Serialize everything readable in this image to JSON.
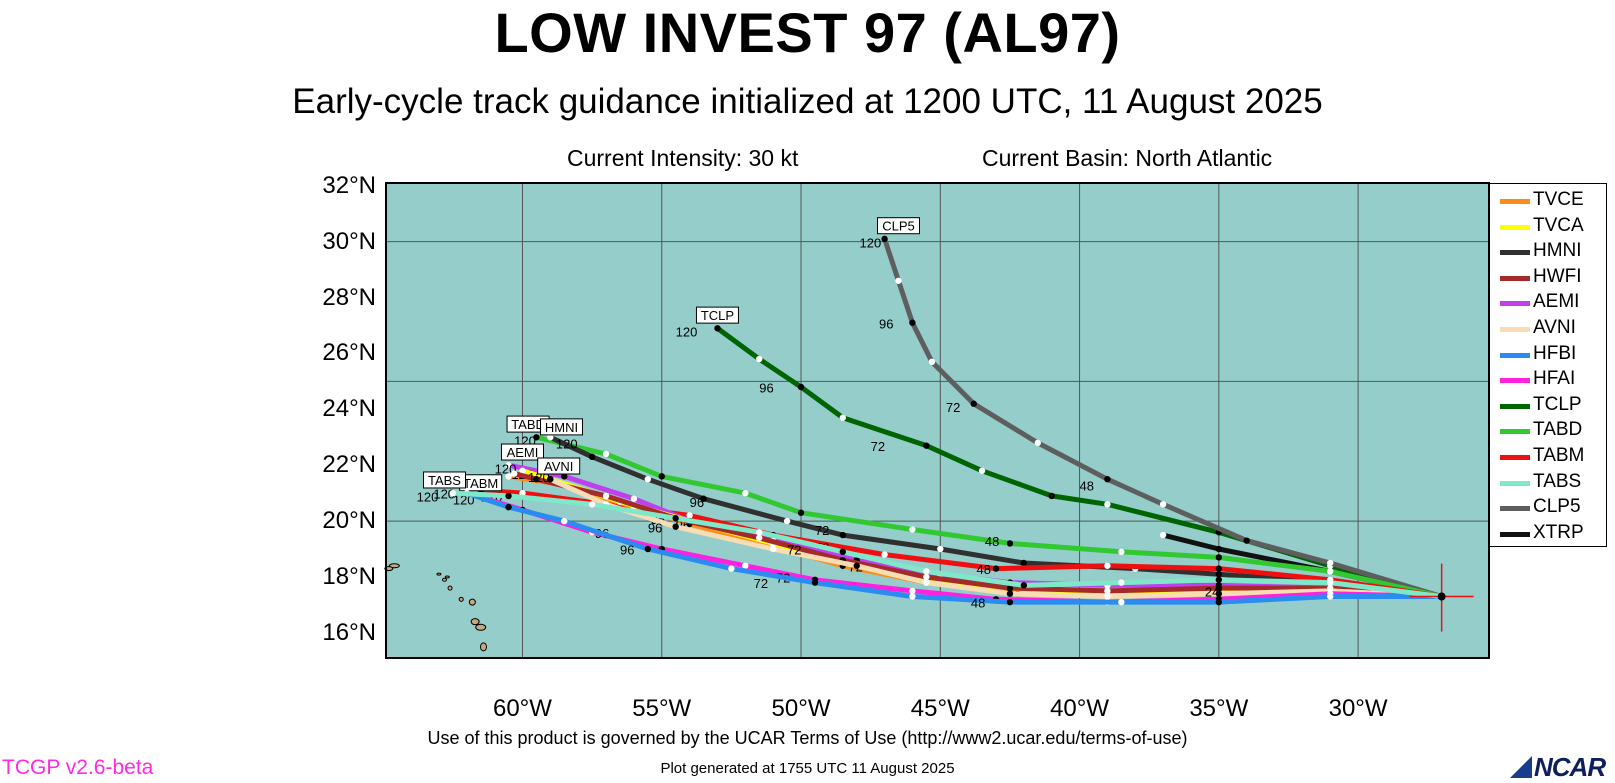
{
  "header": {
    "title": "LOW INVEST 97 (AL97)",
    "subtitle": "Early-cycle track guidance initialized at 1200 UTC, 11 August 2025",
    "intensity": "Current Intensity: 30 kt",
    "basin": "Current Basin: North Atlantic"
  },
  "axes": {
    "lat_labels": [
      "32°N",
      "30°N",
      "28°N",
      "26°N",
      "24°N",
      "22°N",
      "20°N",
      "18°N",
      "16°N"
    ],
    "lon_labels": [
      "60°W",
      "55°W",
      "50°W",
      "45°W",
      "40°W",
      "35°W",
      "30°W"
    ],
    "lat_range": [
      15.1,
      32.1
    ],
    "lon_range": [
      -64.9,
      -25.3
    ],
    "grid": true
  },
  "colors": {
    "ocean": "#95cdcb",
    "land": "#c8a880",
    "grid": "#555555",
    "version": "#ff2ae3"
  },
  "footer": {
    "terms": "Use of this product is governed by the UCAR Terms of Use (http://www2.ucar.edu/terms-of-use)",
    "generated": "Plot generated at 1755 UTC   11 August 2025",
    "version": "TCGP v2.6-beta",
    "logo_text": "NCAR"
  },
  "legend": [
    {
      "name": "TVCE",
      "color": "#ff8c1a"
    },
    {
      "name": "TVCA",
      "color": "#ffff00"
    },
    {
      "name": "HMNI",
      "color": "#303030"
    },
    {
      "name": "HWFI",
      "color": "#a52a2a"
    },
    {
      "name": "AEMI",
      "color": "#c040f0"
    },
    {
      "name": "AVNI",
      "color": "#f7dcb4"
    },
    {
      "name": "HFBI",
      "color": "#2a8cf0"
    },
    {
      "name": "HFAI",
      "color": "#ff20e0"
    },
    {
      "name": "TCLP",
      "color": "#006400"
    },
    {
      "name": "TABD",
      "color": "#32c832"
    },
    {
      "name": "TABM",
      "color": "#ee1010"
    },
    {
      "name": "TABS",
      "color": "#7fe8c8"
    },
    {
      "name": "CLP5",
      "color": "#5e5e5e"
    },
    {
      "name": "XTRP",
      "color": "#111111"
    }
  ],
  "chart_data": {
    "type": "line",
    "title": "LOW INVEST 97 (AL97)",
    "x_axis": "longitude (°E, negative = W)",
    "y_axis": "latitude (°N)",
    "initial_position": [
      -27.0,
      17.3
    ],
    "series": [
      {
        "name": "TCLP",
        "points": [
          [
            -27.0,
            17.3
          ],
          [
            -31.0,
            18.4
          ],
          [
            -35.0,
            19.6
          ],
          [
            -39.0,
            20.6
          ],
          [
            -41.0,
            20.9
          ],
          [
            -43.5,
            21.8
          ],
          [
            -45.5,
            22.7
          ],
          [
            -48.5,
            23.7
          ],
          [
            -50.0,
            24.8
          ],
          [
            -51.5,
            25.8
          ],
          [
            -53.0,
            26.9
          ]
        ],
        "labels": [
          {
            "text": "72",
            "at": [
              -47.5,
              22.5
            ]
          },
          {
            "text": "96",
            "at": [
              -51.5,
              24.6
            ]
          },
          {
            "text": "120",
            "at": [
              -54.5,
              26.6
            ]
          }
        ],
        "tag": "TCLP",
        "tag_at": [
          -53.0,
          27.3
        ]
      },
      {
        "name": "CLP5",
        "points": [
          [
            -27.0,
            17.3
          ],
          [
            -31.0,
            18.5
          ],
          [
            -34.0,
            19.3
          ],
          [
            -37.0,
            20.6
          ],
          [
            -39.0,
            21.5
          ],
          [
            -41.5,
            22.8
          ],
          [
            -43.8,
            24.2
          ],
          [
            -45.3,
            25.7
          ],
          [
            -46.0,
            27.1
          ],
          [
            -46.5,
            28.6
          ],
          [
            -47.0,
            30.1
          ]
        ],
        "labels": [
          {
            "text": "48",
            "at": [
              -40.0,
              21.1
            ]
          },
          {
            "text": "72",
            "at": [
              -44.8,
              23.9
            ]
          },
          {
            "text": "96",
            "at": [
              -47.2,
              26.9
            ]
          },
          {
            "text": "120",
            "at": [
              -47.9,
              29.8
            ]
          }
        ],
        "tag": "CLP5",
        "tag_at": [
          -46.5,
          30.5
        ]
      },
      {
        "name": "XTRP",
        "points": [
          [
            -27.0,
            17.3
          ],
          [
            -31.0,
            18.2
          ],
          [
            -35.0,
            19.0
          ],
          [
            -37.0,
            19.5
          ]
        ],
        "labels": [],
        "tag": "",
        "tag_at": null
      },
      {
        "name": "TABD",
        "points": [
          [
            -27.0,
            17.3
          ],
          [
            -31.0,
            18.2
          ],
          [
            -35.0,
            18.7
          ],
          [
            -38.5,
            18.9
          ],
          [
            -42.5,
            19.2
          ],
          [
            -46.0,
            19.7
          ],
          [
            -50.0,
            20.3
          ],
          [
            -52.0,
            21.0
          ],
          [
            -55.0,
            21.6
          ],
          [
            -57.0,
            22.4
          ],
          [
            -59.5,
            23.0
          ]
        ],
        "labels": [
          {
            "text": "48",
            "at": [
              -43.4,
              19.1
            ]
          },
          {
            "text": "120",
            "at": [
              -60.3,
              22.7
            ]
          }
        ],
        "tag": "TABD",
        "tag_at": [
          -59.8,
          23.4
        ]
      },
      {
        "name": "HMNI",
        "points": [
          [
            -27.0,
            17.3
          ],
          [
            -31.0,
            17.8
          ],
          [
            -35.0,
            18.1
          ],
          [
            -38.0,
            18.3
          ],
          [
            -42.0,
            18.5
          ],
          [
            -45.0,
            19.0
          ],
          [
            -48.5,
            19.5
          ],
          [
            -50.5,
            20.0
          ],
          [
            -53.5,
            20.8
          ],
          [
            -55.5,
            21.5
          ],
          [
            -57.5,
            22.3
          ],
          [
            -59.0,
            23.0
          ]
        ],
        "labels": [
          {
            "text": "72",
            "at": [
              -49.5,
              19.5
            ]
          },
          {
            "text": "96",
            "at": [
              -54.0,
              20.5
            ]
          },
          {
            "text": "120",
            "at": [
              -58.8,
              22.6
            ]
          }
        ],
        "tag": "HMNI",
        "tag_at": [
          -58.6,
          23.3
        ]
      },
      {
        "name": "TABM",
        "points": [
          [
            -27.0,
            17.3
          ],
          [
            -31.0,
            17.9
          ],
          [
            -35.0,
            18.3
          ],
          [
            -39.0,
            18.4
          ],
          [
            -43.0,
            18.3
          ],
          [
            -47.0,
            18.8
          ],
          [
            -51.0,
            19.5
          ],
          [
            -54.0,
            20.2
          ],
          [
            -57.0,
            20.6
          ],
          [
            -60.0,
            21.0
          ],
          [
            -61.5,
            21.1
          ]
        ],
        "labels": [
          {
            "text": "48",
            "at": [
              -43.7,
              18.1
            ]
          },
          {
            "text": "72",
            "at": [
              -49.5,
              18.9
            ]
          },
          {
            "text": "96",
            "at": [
              -55.4,
              19.9
            ]
          },
          {
            "text": "120",
            "at": [
              -61.5,
              20.7
            ]
          }
        ],
        "tag": "TABM",
        "tag_at": [
          -61.5,
          21.3
        ]
      },
      {
        "name": "AEMI",
        "points": [
          [
            -27.0,
            17.3
          ],
          [
            -31.0,
            17.6
          ],
          [
            -35.0,
            17.7
          ],
          [
            -39.0,
            17.7
          ],
          [
            -42.5,
            17.8
          ],
          [
            -45.0,
            18.1
          ],
          [
            -48.0,
            18.6
          ],
          [
            -51.0,
            19.3
          ],
          [
            -54.0,
            20.0
          ],
          [
            -56.0,
            20.8
          ],
          [
            -58.5,
            21.6
          ],
          [
            -60.5,
            22.0
          ]
        ],
        "labels": [
          {
            "text": "120",
            "at": [
              -61.0,
              21.7
            ]
          }
        ],
        "tag": "AEMI",
        "tag_at": [
          -60.0,
          22.4
        ]
      },
      {
        "name": "TVCE",
        "points": [
          [
            -27.0,
            17.3
          ],
          [
            -31.0,
            17.5
          ],
          [
            -35.0,
            17.4
          ],
          [
            -39.0,
            17.3
          ],
          [
            -42.5,
            17.5
          ],
          [
            -45.5,
            17.8
          ],
          [
            -48.5,
            18.4
          ],
          [
            -51.0,
            19.1
          ],
          [
            -54.0,
            19.9
          ],
          [
            -56.0,
            20.5
          ],
          [
            -58.5,
            21.3
          ],
          [
            -60.5,
            21.6
          ]
        ],
        "labels": [
          {
            "text": "48",
            "at": [
              -42.6,
              17.3
            ]
          },
          {
            "text": "72",
            "at": [
              -48.3,
              18.2
            ]
          },
          {
            "text": "96",
            "at": [
              -54.5,
              19.7
            ]
          },
          {
            "text": "120",
            "at": [
              -60.4,
              21.5
            ]
          }
        ],
        "tag": "",
        "tag_at": null
      },
      {
        "name": "TVCA",
        "points": [
          [
            -27.0,
            17.3
          ],
          [
            -31.0,
            17.5
          ],
          [
            -35.0,
            17.5
          ],
          [
            -39.0,
            17.4
          ],
          [
            -42.5,
            17.6
          ],
          [
            -45.5,
            17.9
          ],
          [
            -48.5,
            18.5
          ],
          [
            -51.0,
            19.2
          ],
          [
            -54.0,
            20.0
          ],
          [
            -56.5,
            20.7
          ],
          [
            -59.0,
            21.5
          ],
          [
            -60.0,
            21.8
          ]
        ],
        "labels": [],
        "tag": "",
        "tag_at": null
      },
      {
        "name": "HWFI",
        "points": [
          [
            -27.0,
            17.3
          ],
          [
            -31.0,
            17.6
          ],
          [
            -35.0,
            17.6
          ],
          [
            -39.0,
            17.5
          ],
          [
            -42.5,
            17.6
          ],
          [
            -45.5,
            18.0
          ],
          [
            -48.5,
            18.6
          ],
          [
            -51.5,
            19.4
          ],
          [
            -54.5,
            20.1
          ],
          [
            -57.0,
            20.9
          ],
          [
            -59.5,
            21.5
          ],
          [
            -60.3,
            21.7
          ]
        ],
        "labels": [],
        "tag": "",
        "tag_at": null
      },
      {
        "name": "AVNI",
        "points": [
          [
            -27.0,
            17.3
          ],
          [
            -31.0,
            17.5
          ],
          [
            -35.0,
            17.4
          ],
          [
            -39.0,
            17.3
          ],
          [
            -42.5,
            17.4
          ],
          [
            -45.5,
            17.8
          ],
          [
            -48.0,
            18.4
          ],
          [
            -51.0,
            19.0
          ],
          [
            -54.5,
            19.8
          ],
          [
            -57.0,
            20.6
          ],
          [
            -59.0,
            21.5
          ]
        ],
        "labels": [
          {
            "text": "72",
            "at": [
              -50.5,
              18.8
            ]
          },
          {
            "text": "96",
            "at": [
              -55.5,
              19.6
            ]
          },
          {
            "text": "120",
            "at": [
              -59.8,
              21.4
            ]
          }
        ],
        "tag": "AVNI",
        "tag_at": [
          -58.7,
          21.9
        ]
      },
      {
        "name": "HFAI",
        "points": [
          [
            -27.0,
            17.3
          ],
          [
            -31.0,
            17.4
          ],
          [
            -35.0,
            17.2
          ],
          [
            -39.0,
            17.1
          ],
          [
            -43.0,
            17.2
          ],
          [
            -46.0,
            17.5
          ],
          [
            -49.5,
            17.9
          ],
          [
            -52.0,
            18.4
          ],
          [
            -55.0,
            19.0
          ],
          [
            -57.5,
            19.6
          ],
          [
            -60.0,
            20.4
          ],
          [
            -62.0,
            21.0
          ]
        ],
        "labels": [
          {
            "text": "72",
            "at": [
              -50.9,
              17.8
            ]
          },
          {
            "text": "96",
            "at": [
              -57.4,
              19.4
            ]
          },
          {
            "text": "120",
            "at": [
              -62.5,
              20.6
            ]
          }
        ],
        "tag": "",
        "tag_at": null
      },
      {
        "name": "HFBI",
        "points": [
          [
            -27.0,
            17.3
          ],
          [
            -31.0,
            17.3
          ],
          [
            -35.0,
            17.1
          ],
          [
            -38.5,
            17.1
          ],
          [
            -42.5,
            17.1
          ],
          [
            -46.0,
            17.3
          ],
          [
            -49.5,
            17.8
          ],
          [
            -52.5,
            18.3
          ],
          [
            -55.5,
            19.0
          ],
          [
            -58.5,
            20.0
          ],
          [
            -60.5,
            20.5
          ],
          [
            -62.0,
            21.0
          ]
        ],
        "labels": [
          {
            "text": "48",
            "at": [
              -43.9,
              16.9
            ]
          },
          {
            "text": "72",
            "at": [
              -51.7,
              17.6
            ]
          },
          {
            "text": "96",
            "at": [
              -56.5,
              18.8
            ]
          },
          {
            "text": "120",
            "at": [
              -63.2,
              20.8
            ]
          }
        ],
        "tag": "",
        "tag_at": null
      },
      {
        "name": "TABS",
        "points": [
          [
            -27.0,
            17.3
          ],
          [
            -31.0,
            17.8
          ],
          [
            -35.0,
            17.9
          ],
          [
            -38.5,
            17.8
          ],
          [
            -42.0,
            17.7
          ],
          [
            -45.5,
            18.2
          ],
          [
            -48.5,
            18.9
          ],
          [
            -51.5,
            19.6
          ],
          [
            -54.5,
            20.1
          ],
          [
            -57.5,
            20.6
          ],
          [
            -60.5,
            20.9
          ],
          [
            -62.5,
            21.0
          ]
        ],
        "labels": [
          {
            "text": "24",
            "at": [
              -35.5,
              17.3
            ]
          },
          {
            "text": "120",
            "at": [
              -63.8,
              20.7
            ]
          }
        ],
        "tag": "TABS",
        "tag_at": [
          -62.8,
          21.4
        ]
      }
    ],
    "timestamp_labels_near_start": [
      "24",
      "24",
      "24",
      "24",
      "48",
      "48",
      "48",
      "72",
      "72",
      "72",
      "96",
      "96",
      "96"
    ]
  }
}
